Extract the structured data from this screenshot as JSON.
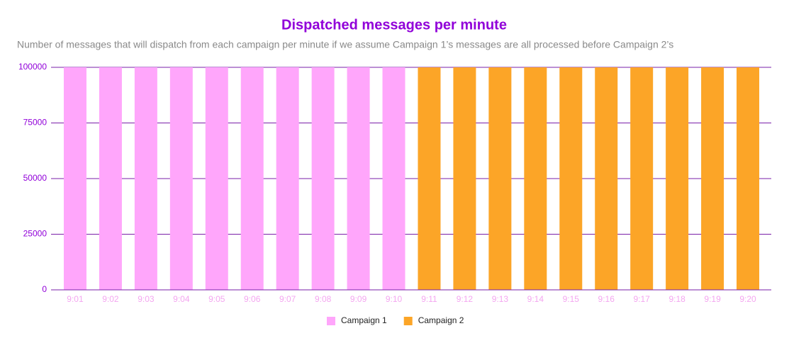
{
  "chart_data": {
    "type": "bar",
    "stacked": true,
    "title": "Dispatched messages per minute",
    "subtitle": "Number of messages that will dispatch from each campaign per minute if we assume Campaign 1’s messages are all processed before Campaign 2’s",
    "categories": [
      "9:01",
      "9:02",
      "9:03",
      "9:04",
      "9:05",
      "9:06",
      "9:07",
      "9:08",
      "9:09",
      "9:10",
      "9:11",
      "9:12",
      "9:13",
      "9:14",
      "9:15",
      "9:16",
      "9:17",
      "9:18",
      "9:19",
      "9:20"
    ],
    "series": [
      {
        "name": "Campaign 1",
        "color": "#ffa6fb",
        "values": [
          100000,
          100000,
          100000,
          100000,
          100000,
          100000,
          100000,
          100000,
          100000,
          100000,
          0,
          0,
          0,
          0,
          0,
          0,
          0,
          0,
          0,
          0
        ]
      },
      {
        "name": "Campaign 2",
        "color": "#fca527",
        "values": [
          0,
          0,
          0,
          0,
          0,
          0,
          0,
          0,
          0,
          0,
          100000,
          100000,
          100000,
          100000,
          100000,
          100000,
          100000,
          100000,
          100000,
          100000
        ]
      }
    ],
    "ylim": [
      0,
      100000
    ],
    "yticks": [
      0,
      25000,
      50000,
      75000,
      100000
    ],
    "grid": true,
    "legend": "bottom"
  }
}
